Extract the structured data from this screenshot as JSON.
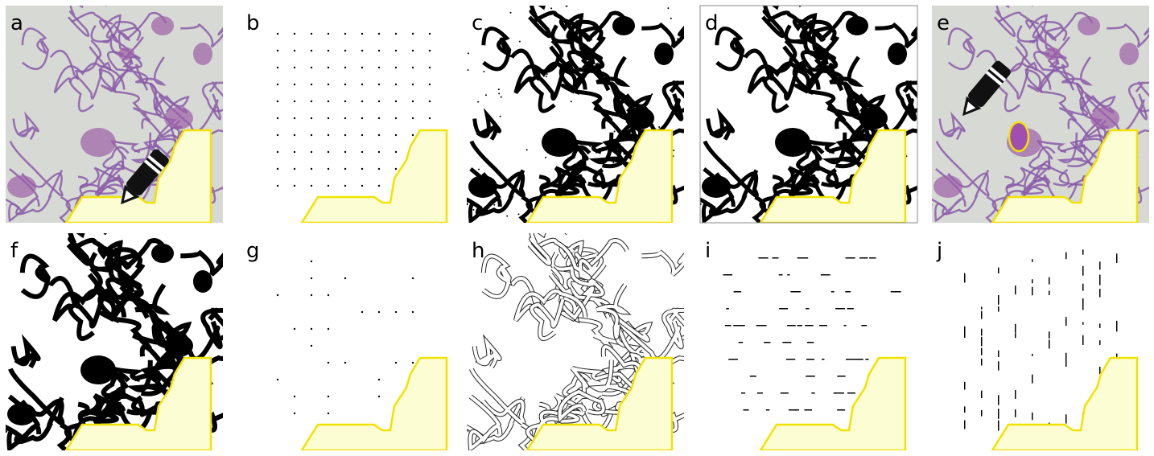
{
  "panels": [
    {
      "label": "a"
    },
    {
      "label": "b"
    },
    {
      "label": "c"
    },
    {
      "label": "d"
    },
    {
      "label": "e"
    },
    {
      "label": "f"
    },
    {
      "label": "g"
    },
    {
      "label": "h"
    },
    {
      "label": "i"
    },
    {
      "label": "j"
    }
  ]
}
